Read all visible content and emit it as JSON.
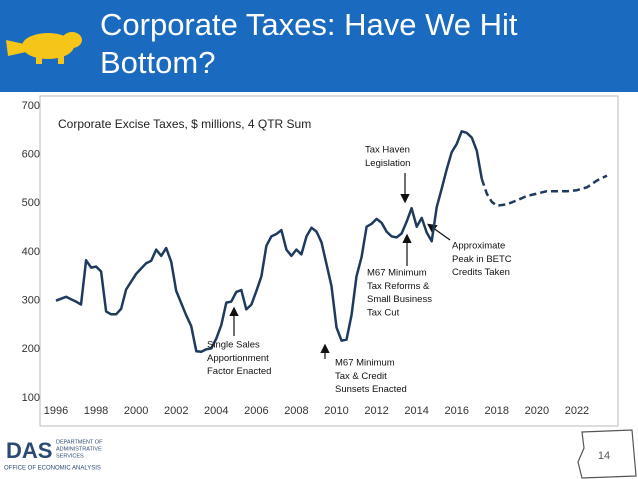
{
  "slide": {
    "title": "Corporate Taxes: Have We Hit Bottom?",
    "page_number": "14",
    "logo": {
      "name": "DAS",
      "department_lines": [
        "DEPARTMENT OF",
        "ADMINISTRATIVE",
        "SERVICES"
      ],
      "office": "OFFICE OF ECONOMIC ANALYSIS"
    }
  },
  "chart_data": {
    "type": "line",
    "title": "Corporate Excise Taxes, $ millions, 4 QTR Sum",
    "xlim": [
      1996,
      2023.5
    ],
    "xticks": [
      1996,
      1998,
      2000,
      2002,
      2004,
      2006,
      2008,
      2010,
      2012,
      2014,
      2016,
      2018,
      2020,
      2022
    ],
    "ylim": [
      100,
      700
    ],
    "yticks": [
      100,
      200,
      300,
      400,
      500,
      600,
      700
    ],
    "grid": false,
    "series": [
      {
        "color": "#1f3a5f",
        "dash": false,
        "x": [
          1996,
          1996.5,
          1997,
          1997.25,
          1997.5,
          1997.75,
          1998,
          1998.25,
          1998.5,
          1998.75,
          1999,
          1999.25,
          1999.5,
          2000,
          2000.5,
          2000.75,
          2001,
          2001.25,
          2001.5,
          2001.75,
          2002,
          2002.5,
          2002.75,
          2003,
          2003.25,
          2003.5,
          2003.75,
          2004,
          2004.25,
          2004.5,
          2004.75,
          2005,
          2005.25,
          2005.5,
          2005.75,
          2006,
          2006.25,
          2006.5,
          2006.75,
          2007,
          2007.25,
          2007.5,
          2007.75,
          2008,
          2008.25,
          2008.5,
          2008.75,
          2009,
          2009.25,
          2009.5,
          2009.75,
          2010,
          2010.25,
          2010.5,
          2010.75,
          2011,
          2011.25,
          2011.5,
          2011.75,
          2012,
          2012.25,
          2012.5,
          2012.75,
          2013,
          2013.25,
          2013.5,
          2013.75,
          2014,
          2014.25,
          2014.5,
          2014.75,
          2015,
          2015.25,
          2015.5,
          2015.75,
          2016,
          2016.25,
          2016.5,
          2016.75,
          2017,
          2017.25
        ],
        "values": [
          300,
          308,
          298,
          292,
          383,
          368,
          370,
          360,
          278,
          272,
          272,
          283,
          323,
          355,
          377,
          382,
          405,
          392,
          408,
          380,
          320,
          270,
          248,
          196,
          195,
          200,
          202,
          222,
          250,
          296,
          298,
          318,
          322,
          282,
          292,
          320,
          350,
          413,
          432,
          437,
          445,
          405,
          392,
          405,
          395,
          432,
          450,
          442,
          420,
          375,
          330,
          245,
          218,
          220,
          270,
          350,
          390,
          452,
          458,
          468,
          460,
          442,
          432,
          430,
          438,
          462,
          490,
          452,
          470,
          440,
          422,
          492,
          530,
          570,
          605,
          622,
          648,
          645,
          635,
          608,
          550
        ]
      },
      {
        "color": "#1f3a5f",
        "dash": true,
        "x": [
          2017.25,
          2017.5,
          2017.75,
          2018,
          2018.5,
          2019,
          2019.5,
          2020,
          2020.5,
          2021,
          2021.5,
          2022,
          2022.5,
          2023,
          2023.5
        ],
        "values": [
          550,
          520,
          503,
          495,
          498,
          506,
          515,
          520,
          525,
          525,
          525,
          527,
          533,
          547,
          557
        ]
      }
    ],
    "annotations": [
      {
        "lines": [
          "Tax Haven",
          "Legislation"
        ]
      },
      {
        "lines": [
          "Approximate",
          "Peak in BETC",
          "Credits Taken"
        ]
      },
      {
        "lines": [
          "M67 Minimum",
          "Tax Reforms &",
          "Small Business",
          "Tax Cut"
        ]
      },
      {
        "lines": [
          "Single Sales",
          "Apportionment",
          "Factor Enacted"
        ]
      },
      {
        "lines": [
          "M67 Minimum",
          "Tax & Credit",
          "Sunsets Enacted"
        ]
      }
    ]
  }
}
